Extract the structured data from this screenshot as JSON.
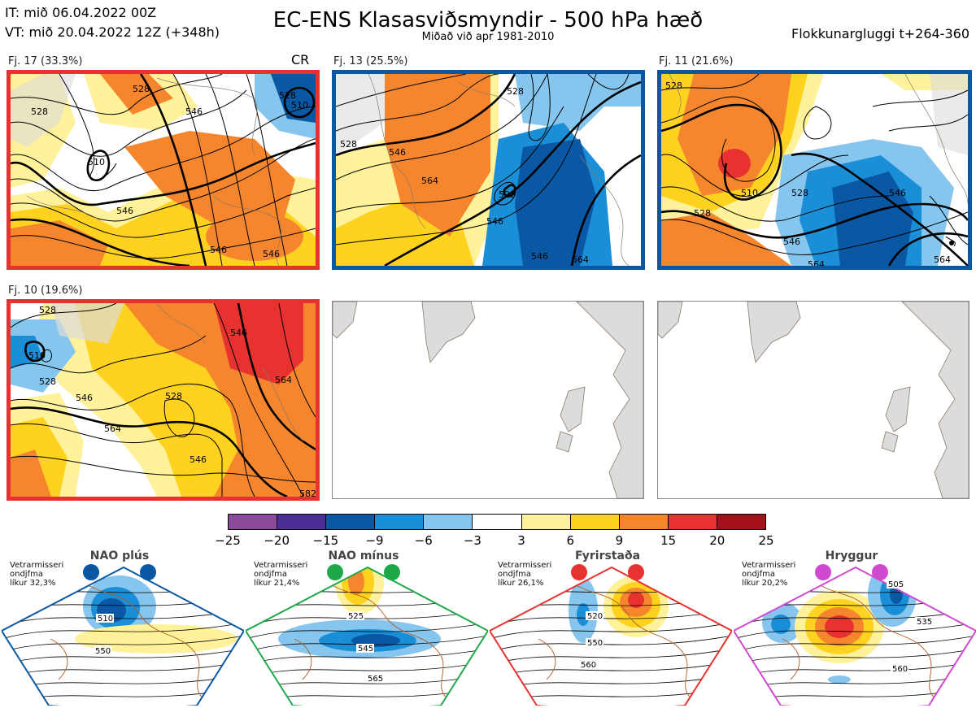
{
  "header": {
    "init_time": "IT: mið 06.04.2022 00Z",
    "valid_time": "VT: mið 20.04.2022 12Z  (+348h)",
    "title": "EC-ENS Klasasviðsmyndir - 500 hPa hæð",
    "subtitle": "Miðað við apr 1981-2010",
    "window": "Flokkunargluggi t+264-360"
  },
  "panels": [
    {
      "label": "Fj. 17 (33.3%)",
      "tag": "CR",
      "border": "#e8322f",
      "contours": [
        "528",
        "528",
        "510",
        "546",
        "546",
        "546",
        "546",
        "528",
        "510"
      ]
    },
    {
      "label": "Fj. 13 (25.5%)",
      "tag": "",
      "border": "#0a57a3",
      "contours": [
        "528",
        "528",
        "546",
        "564",
        "528",
        "546",
        "546",
        "564"
      ]
    },
    {
      "label": "Fj. 11 (21.6%)",
      "tag": "",
      "border": "#0a57a3",
      "contours": [
        "528",
        "510",
        "528",
        "528",
        "546",
        "546",
        "564",
        "564"
      ]
    },
    {
      "label": "Fj. 10 (19.6%)",
      "tag": "",
      "border": "#e8322f",
      "contours": [
        "528",
        "510",
        "528",
        "546",
        "546",
        "528",
        "564",
        "546",
        "564",
        "582"
      ]
    }
  ],
  "colorbar": {
    "labels": [
      "−25",
      "−20",
      "−15",
      "−9",
      "−6",
      "−3",
      "3",
      "6",
      "9",
      "15",
      "20",
      "25"
    ],
    "colors": [
      "#8b4a9c",
      "#4b2e96",
      "#0a57a3",
      "#1a8fd8",
      "#86c6ee",
      "#ffffff",
      "#fff29a",
      "#ffd21f",
      "#f5862e",
      "#e8322f",
      "#a6101a"
    ]
  },
  "regimes": [
    {
      "name": "NAO plús",
      "note": "Vetrarmisseri\nondjfma\nlíkur 32,3%",
      "color": "#0a57a3",
      "contours": [
        "510",
        "550"
      ]
    },
    {
      "name": "NAO mínus",
      "note": "Vetrarmisseri\nondjfma\nlíkur 21,4%",
      "color": "#1fa84a",
      "contours": [
        "525",
        "545",
        "565"
      ]
    },
    {
      "name": "Fyrirstaða",
      "note": "Vetrarmisseri\nondjfma\nlíkur 26,1%",
      "color": "#e8322f",
      "contours": [
        "520",
        "550",
        "560"
      ]
    },
    {
      "name": "Hryggur",
      "note": "Vetrarmisseri\nondjfma\nlíkur 20,2%",
      "color": "#d04ad0",
      "contours": [
        "505",
        "535",
        "560"
      ]
    }
  ]
}
